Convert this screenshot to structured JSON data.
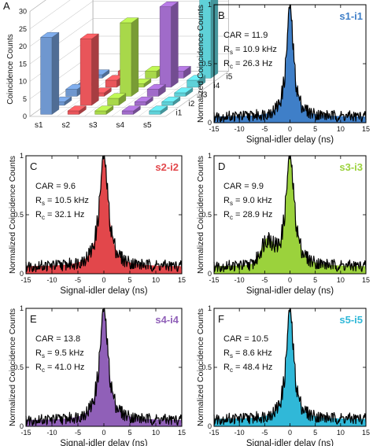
{
  "chart_data": [
    {
      "panel": "A",
      "type": "bar3d",
      "ylabel": "Coincidence Counts",
      "signal_labels": [
        "s1",
        "s2",
        "s3",
        "s4",
        "s5"
      ],
      "idler_labels": [
        "i1",
        "i2",
        "i3",
        "i4",
        "i5"
      ],
      "yticks": [
        0,
        5,
        10,
        15,
        20,
        25,
        30
      ],
      "ylim": [
        0,
        30
      ],
      "values": [
        [
          22,
          1,
          2,
          1,
          1
        ],
        [
          1,
          19,
          1,
          2,
          2
        ],
        [
          1,
          2,
          21,
          1,
          2
        ],
        [
          1,
          1,
          2,
          23,
          2
        ],
        [
          1,
          1,
          1,
          2,
          28
        ]
      ],
      "colors": [
        "#6f97cf",
        "#e8555a",
        "#a8d84a",
        "#a06bc9",
        "#5fd1d8"
      ]
    },
    {
      "panel": "B",
      "type": "area",
      "pair": "s1-i1",
      "color": "#3f7fc8",
      "car": "CAR = 11.9",
      "rs_sub": "s",
      "rs": " = 10.9 kHz",
      "rc_sub": "c",
      "rc": " = 26.3 Hz",
      "xlabel": "Signal-idler delay (ns)",
      "ylabel": "Normalized Coincidence Counts",
      "xlim": [
        -15,
        15
      ],
      "ylim": [
        0,
        1
      ],
      "xticks": [
        -15,
        -10,
        -5,
        0,
        5,
        10,
        15
      ],
      "yticks": [
        0,
        0.5,
        1
      ],
      "peak_center": 0.0,
      "fwhm": 1.6,
      "baseline": 0.05,
      "shoulder": null
    },
    {
      "panel": "C",
      "type": "area",
      "pair": "s2-i2",
      "color": "#e2474b",
      "car": "CAR = 9.6",
      "rs_sub": "s",
      "rs": " = 10.5 kHz",
      "rc_sub": "c",
      "rc": " = 32.1 Hz",
      "xlabel": "Signal-idler delay (ns)",
      "ylabel": "Normalized Coincidence Counts",
      "xlim": [
        -15,
        15
      ],
      "ylim": [
        0,
        1
      ],
      "xticks": [
        -15,
        -10,
        -5,
        0,
        5,
        10,
        15
      ],
      "yticks": [
        0,
        0.5,
        1
      ],
      "peak_center": 0.0,
      "fwhm": 2.0,
      "baseline": 0.06,
      "shoulder": null
    },
    {
      "panel": "D",
      "type": "area",
      "pair": "s3-i3",
      "color": "#9bd23c",
      "car": "CAR = 9.9",
      "rs_sub": "s",
      "rs": " = 9.0 kHz",
      "rc_sub": "c",
      "rc": " = 28.9 Hz",
      "xlabel": "Signal-idler delay (ns)",
      "ylabel": "Normalized Coincidence Counts",
      "xlim": [
        -15,
        15
      ],
      "ylim": [
        0,
        1
      ],
      "xticks": [
        -15,
        -10,
        -5,
        0,
        5,
        10,
        15
      ],
      "yticks": [
        0,
        0.5,
        1
      ],
      "peak_center": 0.0,
      "fwhm": 2.0,
      "baseline": 0.06,
      "shoulder": {
        "x": -4.5,
        "height": 0.2,
        "width": 1.2
      }
    },
    {
      "panel": "E",
      "type": "area",
      "pair": "s4-i4",
      "color": "#9060b8",
      "car": "CAR = 13.8",
      "rs_sub": "s",
      "rs": " = 9.5 kHz",
      "rc_sub": "c",
      "rc": " = 41.0 Hz",
      "xlabel": "Signal-idler delay (ns)",
      "ylabel": "Normalized Coincidence Counts",
      "xlim": [
        -15,
        15
      ],
      "ylim": [
        0,
        1
      ],
      "xticks": [
        -15,
        -10,
        -5,
        0,
        5,
        10,
        15
      ],
      "yticks": [
        0,
        0.5,
        1
      ],
      "peak_center": 0.0,
      "fwhm": 1.9,
      "baseline": 0.05,
      "shoulder": null
    },
    {
      "panel": "F",
      "type": "area",
      "pair": "s5-i5",
      "color": "#30b8d8",
      "car": "CAR = 10.5",
      "rs_sub": "s",
      "rs": " = 8.6 kHz",
      "rc_sub": "c",
      "rc": " = 48.4 Hz",
      "xlabel": "Signal-idler delay (ns)",
      "ylabel": "Normalized Coincidence Counts",
      "xlim": [
        -15,
        15
      ],
      "ylim": [
        0,
        1
      ],
      "xticks": [
        -15,
        -10,
        -5,
        0,
        5,
        10,
        15
      ],
      "yticks": [
        0,
        0.5,
        1
      ],
      "peak_center": 0.0,
      "fwhm": 1.7,
      "baseline": 0.06,
      "shoulder": null
    }
  ]
}
